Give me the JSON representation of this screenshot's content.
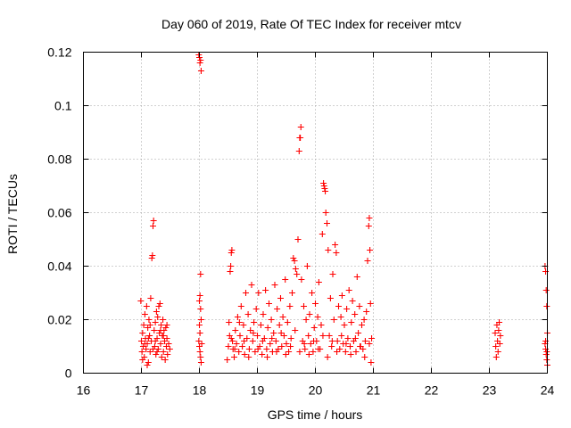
{
  "chart_data": {
    "type": "scatter",
    "title": "Day 060 of 2019, Rate Of TEC Index for receiver mtcv",
    "xlabel": "GPS time / hours",
    "ylabel": "ROTI / TECUs",
    "xlim": [
      16,
      24
    ],
    "ylim": [
      0,
      0.12
    ],
    "xticks": [
      16,
      17,
      18,
      19,
      20,
      21,
      22,
      23,
      24
    ],
    "yticks": [
      0,
      0.02,
      0.04,
      0.06,
      0.08,
      0.1,
      0.12
    ],
    "xtick_labels": [
      "16",
      "17",
      "18",
      "19",
      "20",
      "21",
      "22",
      "23",
      "24"
    ],
    "ytick_labels": [
      "0",
      "0.02",
      "0.04",
      "0.06",
      "0.08",
      "0.1",
      "0.12"
    ],
    "grid": true,
    "marker": "+",
    "marker_color": "#ff0000",
    "series": [
      {
        "name": "ROTI",
        "points": [
          [
            16.99,
            0.027
          ],
          [
            17.0,
            0.012
          ],
          [
            17.01,
            0.008
          ],
          [
            17.02,
            0.015
          ],
          [
            17.03,
            0.01
          ],
          [
            17.04,
            0.018
          ],
          [
            17.05,
            0.006
          ],
          [
            17.06,
            0.022
          ],
          [
            17.07,
            0.013
          ],
          [
            17.08,
            0.009
          ],
          [
            17.09,
            0.025
          ],
          [
            17.1,
            0.011
          ],
          [
            17.11,
            0.017
          ],
          [
            17.12,
            0.004
          ],
          [
            17.13,
            0.02
          ],
          [
            17.14,
            0.014
          ],
          [
            17.15,
            0.008
          ],
          [
            17.16,
            0.028
          ],
          [
            17.17,
            0.012
          ],
          [
            17.18,
            0.043
          ],
          [
            17.19,
            0.044
          ],
          [
            17.2,
            0.055
          ],
          [
            17.21,
            0.057
          ],
          [
            17.22,
            0.016
          ],
          [
            17.23,
            0.01
          ],
          [
            17.24,
            0.019
          ],
          [
            17.25,
            0.007
          ],
          [
            17.26,
            0.023
          ],
          [
            17.27,
            0.013
          ],
          [
            17.28,
            0.021
          ],
          [
            17.29,
            0.009
          ],
          [
            17.3,
            0.025
          ],
          [
            17.31,
            0.015
          ],
          [
            17.32,
            0.026
          ],
          [
            17.33,
            0.011
          ],
          [
            17.34,
            0.018
          ],
          [
            17.35,
            0.006
          ],
          [
            17.36,
            0.014
          ],
          [
            17.37,
            0.02
          ],
          [
            17.38,
            0.008
          ],
          [
            17.39,
            0.016
          ],
          [
            17.4,
            0.012
          ],
          [
            17.41,
            0.005
          ],
          [
            17.42,
            0.017
          ],
          [
            17.43,
            0.01
          ],
          [
            17.44,
            0.013
          ],
          [
            17.45,
            0.007
          ],
          [
            17.47,
            0.011
          ],
          [
            17.49,
            0.009
          ],
          [
            17.02,
            0.005
          ],
          [
            17.06,
            0.011
          ],
          [
            17.12,
            0.013
          ],
          [
            17.15,
            0.018
          ],
          [
            17.24,
            0.012
          ],
          [
            17.27,
            0.008
          ],
          [
            17.33,
            0.016
          ],
          [
            17.38,
            0.014
          ],
          [
            17.44,
            0.018
          ],
          [
            17.1,
            0.003
          ],
          [
            17.2,
            0.009
          ],
          [
            17.99,
            0.119
          ],
          [
            18.0,
            0.118
          ],
          [
            18.01,
            0.116
          ],
          [
            18.02,
            0.117
          ],
          [
            18.03,
            0.113
          ],
          [
            18.02,
            0.037
          ],
          [
            18.0,
            0.027
          ],
          [
            18.01,
            0.029
          ],
          [
            18.02,
            0.024
          ],
          [
            18.0,
            0.018
          ],
          [
            17.99,
            0.012
          ],
          [
            18.0,
            0.01
          ],
          [
            18.01,
            0.008
          ],
          [
            18.02,
            0.006
          ],
          [
            18.03,
            0.004
          ],
          [
            18.04,
            0.011
          ],
          [
            18.01,
            0.015
          ],
          [
            18.03,
            0.02
          ],
          [
            18.48,
            0.005
          ],
          [
            18.5,
            0.01
          ],
          [
            18.51,
            0.019
          ],
          [
            18.52,
            0.014
          ],
          [
            18.53,
            0.038
          ],
          [
            18.54,
            0.04
          ],
          [
            18.55,
            0.045
          ],
          [
            18.56,
            0.046
          ],
          [
            18.57,
            0.012
          ],
          [
            18.58,
            0.009
          ],
          [
            18.6,
            0.006
          ],
          [
            18.62,
            0.016
          ],
          [
            18.64,
            0.011
          ],
          [
            18.66,
            0.021
          ],
          [
            18.68,
            0.008
          ],
          [
            18.7,
            0.014
          ],
          [
            18.72,
            0.025
          ],
          [
            18.74,
            0.01
          ],
          [
            18.76,
            0.018
          ],
          [
            18.78,
            0.007
          ],
          [
            18.8,
            0.03
          ],
          [
            18.82,
            0.013
          ],
          [
            18.84,
            0.022
          ],
          [
            18.86,
            0.009
          ],
          [
            18.88,
            0.016
          ],
          [
            18.9,
            0.033
          ],
          [
            18.92,
            0.012
          ],
          [
            18.94,
            0.019
          ],
          [
            18.96,
            0.008
          ],
          [
            18.98,
            0.024
          ],
          [
            19.0,
            0.014
          ],
          [
            19.02,
            0.03
          ],
          [
            19.04,
            0.01
          ],
          [
            19.06,
            0.018
          ],
          [
            19.08,
            0.007
          ],
          [
            19.1,
            0.022
          ],
          [
            19.12,
            0.013
          ],
          [
            19.14,
            0.031
          ],
          [
            19.16,
            0.009
          ],
          [
            19.18,
            0.017
          ],
          [
            19.2,
            0.026
          ],
          [
            19.22,
            0.011
          ],
          [
            19.24,
            0.02
          ],
          [
            19.26,
            0.008
          ],
          [
            19.28,
            0.015
          ],
          [
            19.3,
            0.033
          ],
          [
            19.32,
            0.012
          ],
          [
            19.34,
            0.024
          ],
          [
            19.36,
            0.009
          ],
          [
            19.38,
            0.018
          ],
          [
            19.4,
            0.028
          ],
          [
            19.42,
            0.01
          ],
          [
            19.44,
            0.021
          ],
          [
            19.46,
            0.014
          ],
          [
            19.48,
            0.035
          ],
          [
            19.5,
            0.011
          ],
          [
            19.52,
            0.019
          ],
          [
            19.54,
            0.008
          ],
          [
            19.56,
            0.025
          ],
          [
            19.58,
            0.013
          ],
          [
            19.6,
            0.03
          ],
          [
            19.62,
            0.043
          ],
          [
            19.64,
            0.042
          ],
          [
            19.66,
            0.039
          ],
          [
            19.68,
            0.037
          ],
          [
            19.7,
            0.05
          ],
          [
            19.72,
            0.083
          ],
          [
            19.73,
            0.088
          ],
          [
            19.74,
            0.088
          ],
          [
            19.75,
            0.092
          ],
          [
            19.76,
            0.035
          ],
          [
            19.78,
            0.012
          ],
          [
            19.8,
            0.025
          ],
          [
            19.82,
            0.009
          ],
          [
            19.84,
            0.02
          ],
          [
            19.86,
            0.04
          ],
          [
            19.88,
            0.014
          ],
          [
            19.9,
            0.022
          ],
          [
            19.92,
            0.011
          ],
          [
            19.94,
            0.03
          ],
          [
            19.96,
            0.008
          ],
          [
            19.98,
            0.017
          ],
          [
            20.0,
            0.026
          ],
          [
            20.02,
            0.012
          ],
          [
            20.04,
            0.021
          ],
          [
            20.06,
            0.034
          ],
          [
            20.08,
            0.009
          ],
          [
            20.1,
            0.018
          ],
          [
            20.12,
            0.052
          ],
          [
            20.14,
            0.071
          ],
          [
            20.15,
            0.07
          ],
          [
            20.16,
            0.069
          ],
          [
            20.17,
            0.068
          ],
          [
            20.18,
            0.06
          ],
          [
            20.2,
            0.056
          ],
          [
            20.22,
            0.046
          ],
          [
            20.24,
            0.014
          ],
          [
            20.26,
            0.028
          ],
          [
            20.28,
            0.01
          ],
          [
            20.3,
            0.037
          ],
          [
            20.32,
            0.02
          ],
          [
            20.34,
            0.048
          ],
          [
            20.36,
            0.045
          ],
          [
            20.38,
            0.012
          ],
          [
            20.4,
            0.025
          ],
          [
            20.42,
            0.009
          ],
          [
            20.44,
            0.021
          ],
          [
            20.46,
            0.029
          ],
          [
            20.48,
            0.011
          ],
          [
            20.5,
            0.018
          ],
          [
            20.52,
            0.008
          ],
          [
            20.54,
            0.024
          ],
          [
            20.56,
            0.013
          ],
          [
            20.58,
            0.031
          ],
          [
            20.6,
            0.01
          ],
          [
            20.62,
            0.019
          ],
          [
            20.64,
            0.027
          ],
          [
            20.66,
            0.012
          ],
          [
            20.68,
            0.022
          ],
          [
            20.7,
            0.008
          ],
          [
            20.72,
            0.036
          ],
          [
            20.74,
            0.015
          ],
          [
            20.76,
            0.025
          ],
          [
            20.78,
            0.01
          ],
          [
            20.8,
            0.018
          ],
          [
            20.82,
            0.009
          ],
          [
            20.84,
            0.02
          ],
          [
            20.86,
            0.012
          ],
          [
            20.88,
            0.023
          ],
          [
            20.9,
            0.042
          ],
          [
            20.92,
            0.055
          ],
          [
            20.93,
            0.058
          ],
          [
            20.94,
            0.046
          ],
          [
            20.95,
            0.026
          ],
          [
            20.96,
            0.004
          ],
          [
            20.97,
            0.013
          ],
          [
            18.55,
            0.013
          ],
          [
            18.61,
            0.009
          ],
          [
            18.69,
            0.019
          ],
          [
            18.77,
            0.012
          ],
          [
            18.85,
            0.006
          ],
          [
            18.93,
            0.015
          ],
          [
            19.01,
            0.009
          ],
          [
            19.09,
            0.012
          ],
          [
            19.17,
            0.006
          ],
          [
            19.25,
            0.013
          ],
          [
            19.33,
            0.008
          ],
          [
            19.41,
            0.015
          ],
          [
            19.49,
            0.007
          ],
          [
            19.57,
            0.01
          ],
          [
            19.65,
            0.016
          ],
          [
            19.73,
            0.008
          ],
          [
            19.81,
            0.011
          ],
          [
            19.89,
            0.007
          ],
          [
            19.97,
            0.012
          ],
          [
            20.05,
            0.009
          ],
          [
            20.13,
            0.014
          ],
          [
            20.21,
            0.006
          ],
          [
            20.29,
            0.012
          ],
          [
            20.37,
            0.008
          ],
          [
            20.45,
            0.014
          ],
          [
            20.53,
            0.011
          ],
          [
            20.61,
            0.007
          ],
          [
            20.69,
            0.013
          ],
          [
            20.77,
            0.01
          ],
          [
            20.85,
            0.006
          ],
          [
            20.93,
            0.011
          ],
          [
            23.1,
            0.015
          ],
          [
            23.11,
            0.01
          ],
          [
            23.12,
            0.006
          ],
          [
            23.13,
            0.018
          ],
          [
            23.14,
            0.012
          ],
          [
            23.15,
            0.008
          ],
          [
            23.16,
            0.016
          ],
          [
            23.17,
            0.019
          ],
          [
            23.18,
            0.011
          ],
          [
            23.19,
            0.014
          ],
          [
            23.96,
            0.04
          ],
          [
            23.97,
            0.038
          ],
          [
            23.98,
            0.031
          ],
          [
            23.99,
            0.025
          ],
          [
            24.0,
            0.015
          ],
          [
            23.96,
            0.011
          ],
          [
            23.97,
            0.009
          ],
          [
            23.98,
            0.007
          ],
          [
            23.99,
            0.005
          ],
          [
            24.0,
            0.003
          ],
          [
            23.97,
            0.012
          ],
          [
            23.99,
            0.008
          ]
        ]
      }
    ]
  }
}
